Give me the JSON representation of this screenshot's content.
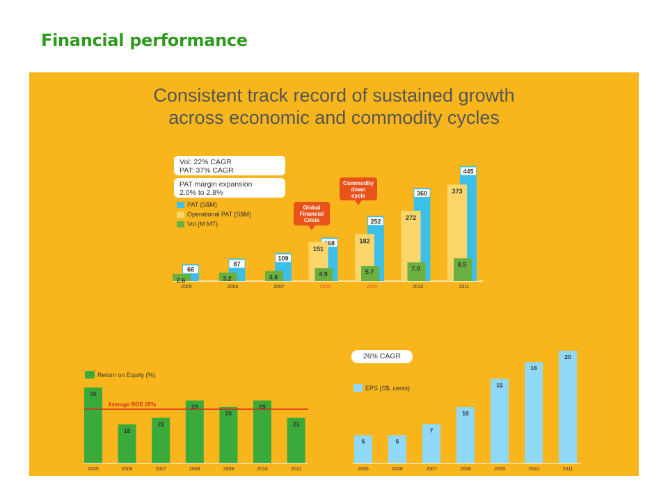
{
  "slide": {
    "title": "Financial performance",
    "headline_line1": "Consistent track record of sustained growth",
    "headline_line2": "across economic and commodity cycles"
  },
  "colors": {
    "panel": "#f8b61c",
    "title": "#2f9a1d",
    "pat": "#3cc0e8",
    "op_pat": "#fcd66a",
    "vol": "#69b041",
    "roe": "#3aab3a",
    "eps": "#8fd8f6",
    "avg_line": "#d92b1c",
    "highlight_year": "#e8531c"
  },
  "chart_data": [
    {
      "type": "bar",
      "categories": [
        "2005",
        "2006",
        "2007",
        "2008",
        "2009",
        "2010",
        "2011"
      ],
      "highlighted_categories": [
        "2008",
        "2009"
      ],
      "series": [
        {
          "name": "PAT (S$M)",
          "values": [
            66,
            87,
            109,
            168,
            252,
            360,
            445
          ]
        },
        {
          "name": "Operational PAT (S$M)",
          "values": [
            null,
            null,
            null,
            151,
            182,
            272,
            373
          ]
        },
        {
          "name": "Vol (M MT)",
          "values": [
            2.6,
            3.2,
            3.8,
            4.9,
            5.7,
            7.0,
            8.5
          ]
        }
      ],
      "value_labels": {
        "pat": [
          "66",
          "87",
          "109",
          "168",
          "252",
          "360",
          "445"
        ],
        "op_pat": [
          "",
          "",
          "",
          "151",
          "182",
          "272",
          "373"
        ],
        "vol": [
          "2.6",
          "3.2",
          "3.8",
          "4.9",
          "5.7",
          "7.0",
          "8.5"
        ]
      },
      "legend": [
        "PAT (S$M)",
        "Operational PAT (S$M)",
        "Vol (M MT)"
      ],
      "annotations": {
        "cagr_line1": "Vol: 22% CAGR",
        "cagr_line2": "PAT: 37% CAGR",
        "margin_line1": "PAT margin expansion",
        "margin_line2": "2.0% to 2.8%",
        "crisis": [
          "Global",
          "Financial",
          "Crisis"
        ],
        "commodity": [
          "Commodity",
          "down",
          "cycle"
        ]
      }
    },
    {
      "type": "bar",
      "categories": [
        "2005",
        "2006",
        "2007",
        "2008",
        "2009",
        "2010",
        "2011"
      ],
      "series": [
        {
          "name": "Return on Equity (%)",
          "values": [
            35,
            18,
            21,
            29,
            26,
            29,
            21
          ]
        }
      ],
      "reference_line": {
        "label": "Average ROE 25%",
        "value": 25
      },
      "legend": [
        "Return on Equity (%)"
      ]
    },
    {
      "type": "bar",
      "categories": [
        "2005",
        "2006",
        "2007",
        "2008",
        "2009",
        "2010",
        "2011"
      ],
      "series": [
        {
          "name": "EPS (S$, cents)",
          "values": [
            5,
            5,
            7,
            10,
            15,
            18,
            20
          ]
        }
      ],
      "legend": [
        "EPS (S$, cents)"
      ],
      "annotation": "26% CAGR"
    }
  ]
}
